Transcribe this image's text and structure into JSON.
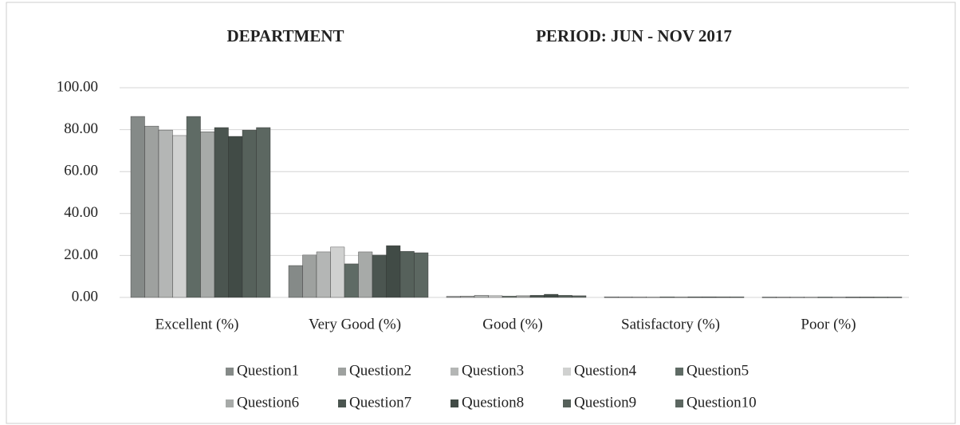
{
  "chart_data": {
    "type": "bar",
    "title": "DEPARTMENT",
    "subtitle": "PERIOD: JUN - NOV 2017",
    "categories": [
      "Excellent (%)",
      "Very Good (%)",
      "Good (%)",
      "Satisfactory (%)",
      "Poor (%)"
    ],
    "series": [
      {
        "name": "Question1",
        "color": "#858a88",
        "values": [
          86.3,
          15.2,
          0.5,
          0.3,
          0.2
        ]
      },
      {
        "name": "Question2",
        "color": "#9ea19f",
        "values": [
          81.7,
          20.2,
          0.6,
          0.3,
          0.2
        ]
      },
      {
        "name": "Question3",
        "color": "#b4b6b5",
        "values": [
          79.8,
          21.7,
          1.0,
          0.3,
          0.2
        ]
      },
      {
        "name": "Question4",
        "color": "#d0d1d0",
        "values": [
          77.2,
          24.0,
          0.8,
          0.3,
          0.2
        ]
      },
      {
        "name": "Question5",
        "color": "#5f6b65",
        "values": [
          86.3,
          16.0,
          0.6,
          0.3,
          0.2
        ]
      },
      {
        "name": "Question6",
        "color": "#a7aaa8",
        "values": [
          79.0,
          21.7,
          0.8,
          0.3,
          0.2
        ]
      },
      {
        "name": "Question7",
        "color": "#4b5550",
        "values": [
          81.0,
          20.2,
          1.0,
          0.3,
          0.2
        ]
      },
      {
        "name": "Question8",
        "color": "#414b46",
        "values": [
          76.8,
          24.7,
          1.5,
          0.3,
          0.2
        ]
      },
      {
        "name": "Question9",
        "color": "#56615b",
        "values": [
          79.8,
          22.0,
          1.0,
          0.3,
          0.2
        ]
      },
      {
        "name": "Question10",
        "color": "#5c6761",
        "values": [
          81.0,
          21.3,
          0.8,
          0.3,
          0.2
        ]
      }
    ],
    "ylim": [
      0,
      100
    ],
    "yticks": [
      {
        "value": 0,
        "label": "0.00"
      },
      {
        "value": 20,
        "label": "20.00"
      },
      {
        "value": 40,
        "label": "40.00"
      },
      {
        "value": 60,
        "label": "60.00"
      },
      {
        "value": 80,
        "label": "80.00"
      },
      {
        "value": 100,
        "label": "100.00"
      }
    ],
    "grid": true,
    "legend": "bottom"
  }
}
